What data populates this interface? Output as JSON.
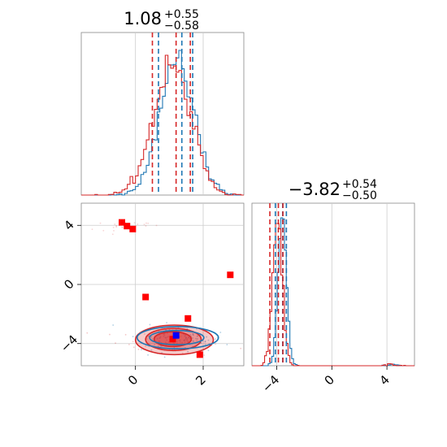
{
  "colors": {
    "series_a": "#1f77b4",
    "series_b": "#d62728",
    "marker_red": "#ff0000",
    "marker_blue": "#0000ff",
    "grid": "#cccccc",
    "axes": "#888888"
  },
  "chart_data": [
    {
      "type": "histogram",
      "panel": "top-left",
      "title_main": "1.08",
      "title_sup": "+0.55",
      "title_sub": "−0.58",
      "xlim": [
        -1.6,
        3.2
      ],
      "grid": true,
      "xticks_hidden": true,
      "series": [
        {
          "color_key": "series_a",
          "quantiles": [
            0.68,
            1.37,
            1.69
          ]
        },
        {
          "color_key": "series_b",
          "quantiles": [
            0.5,
            1.2,
            1.62
          ]
        }
      ]
    },
    {
      "type": "histogram",
      "panel": "bottom-right",
      "title_main": "−3.82",
      "title_sup": "+0.54",
      "title_sub": "−0.50",
      "xlim": [
        -5.8,
        6.0
      ],
      "grid": true,
      "xticks": [
        "−4",
        "0",
        "4"
      ],
      "xtick_values": [
        -4,
        0,
        4
      ],
      "series": [
        {
          "color_key": "series_a",
          "quantiles": [
            -4.1,
            -3.57,
            -3.3
          ]
        },
        {
          "color_key": "series_b",
          "quantiles": [
            -4.5,
            -3.88,
            -3.55
          ]
        }
      ]
    },
    {
      "type": "scatter",
      "panel": "bottom-left",
      "xlim": [
        -1.6,
        3.2
      ],
      "ylim": [
        -5.5,
        5.5
      ],
      "grid": true,
      "xticks": [
        "0",
        "2"
      ],
      "xtick_values": [
        0,
        2
      ],
      "yticks": [
        "4",
        "0",
        "−4"
      ],
      "ytick_values": [
        4,
        0,
        -4
      ],
      "red_squares": [
        {
          "x": -0.4,
          "y": 4.2
        },
        {
          "x": -0.25,
          "y": 3.95
        },
        {
          "x": -0.08,
          "y": 3.75
        },
        {
          "x": 0.3,
          "y": -0.85
        },
        {
          "x": 2.8,
          "y": 0.65
        },
        {
          "x": 1.55,
          "y": -2.3
        },
        {
          "x": 1.1,
          "y": -3.7
        },
        {
          "x": 1.9,
          "y": -4.75
        }
      ],
      "blue_squares": [
        {
          "x": 1.2,
          "y": -3.45
        }
      ],
      "contours": [
        {
          "color_key": "series_b",
          "cx": 1.15,
          "cy": -3.75,
          "rx": 1.15,
          "ry": 1.0,
          "filled": true,
          "opacity": 0.45
        },
        {
          "color_key": "series_b",
          "cx": 1.12,
          "cy": -3.72,
          "rx": 0.82,
          "ry": 0.75,
          "filled": true,
          "opacity": 0.6
        },
        {
          "color_key": "series_b",
          "cx": 1.1,
          "cy": -3.7,
          "rx": 0.55,
          "ry": 0.5,
          "filled": true,
          "opacity": 0.9
        },
        {
          "color_key": "series_a",
          "cx": 1.25,
          "cy": -3.6,
          "rx": 1.2,
          "ry": 0.75,
          "filled": false,
          "opacity": 1
        },
        {
          "color_key": "series_a",
          "cx": 1.22,
          "cy": -3.6,
          "rx": 0.8,
          "ry": 0.48,
          "filled": false,
          "opacity": 1
        }
      ]
    }
  ]
}
